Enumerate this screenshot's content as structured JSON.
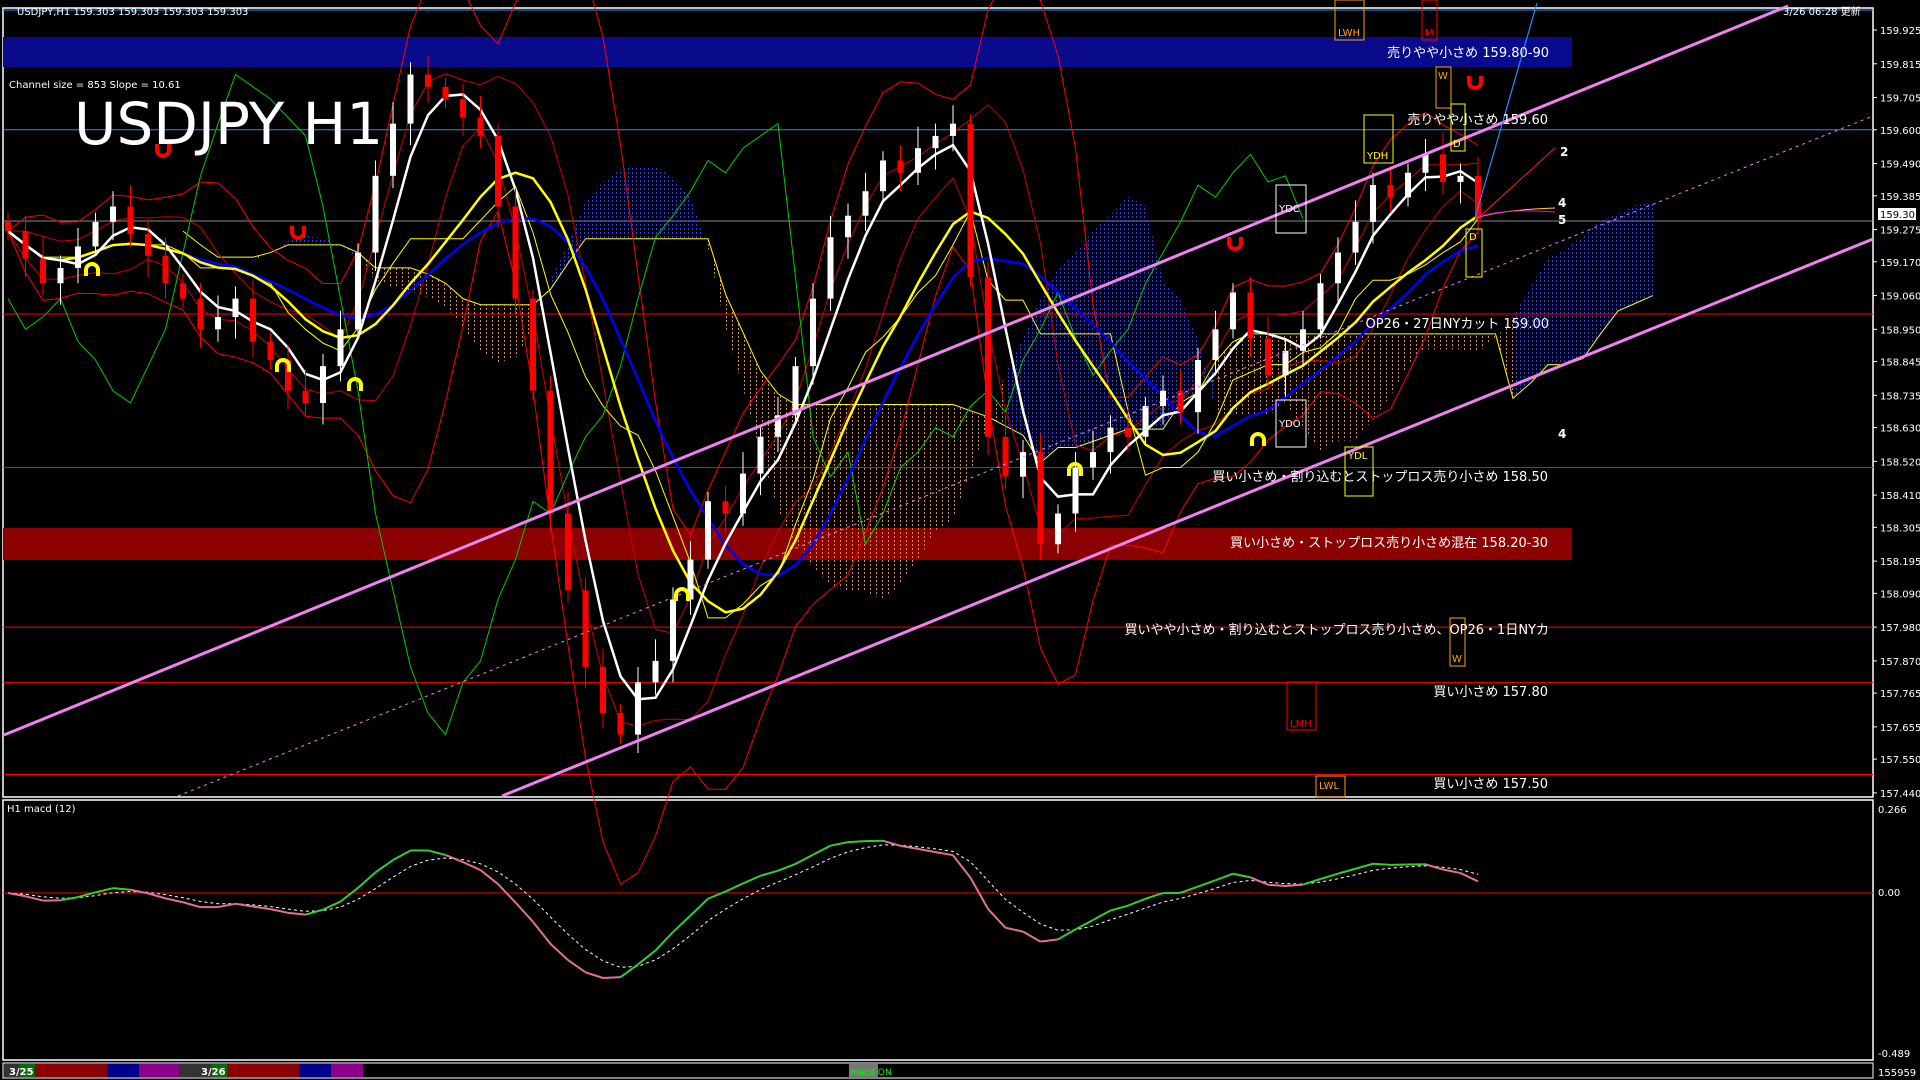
{
  "header": {
    "symbol_line": "USDJPY,H1  159.303 159.303 159.303 159.303",
    "updated": "3/26 06:28 更新"
  },
  "watermark": "USDJPY H1",
  "channel_info": "Channel size = 853 Slope = 10.61",
  "zones": [
    {
      "text": "売りやや小さめ 159.80-90",
      "color": "#0a0a8c"
    },
    {
      "text": "売りやや小さめ 159.60"
    },
    {
      "text": "OP26・27日NYカット 159.00"
    },
    {
      "text": "買い小さめ・割り込むとストップロス売り小さめ 158.50"
    },
    {
      "text": "買い小さめ・ストップロス売り小さめ混在 158.20-30",
      "color": "#8b0000"
    },
    {
      "text": "買いやや小さめ・割り込むとストップロス売り小さめ、OP26・1日NYカ"
    },
    {
      "text": "買い小さめ 157.80"
    },
    {
      "text": "買い小さめ 157.50"
    }
  ],
  "level_boxes": [
    {
      "label": "LWH",
      "color": "#ffa500"
    },
    {
      "label": "M",
      "color": "#ff0000"
    },
    {
      "label": "W",
      "color": "#ffa500"
    },
    {
      "label": "D",
      "color": "#ffff00"
    },
    {
      "label": "YDH",
      "color": "#ffff00"
    },
    {
      "label": "YDC",
      "color": "#ffffff"
    },
    {
      "label": "YDO",
      "color": "#ffffff"
    },
    {
      "label": "YDL",
      "color": "#ffff00"
    },
    {
      "label": "D",
      "color": "#ffff00"
    },
    {
      "label": "W",
      "color": "#ffa500"
    },
    {
      "label": "LMH",
      "color": "#ff0000"
    },
    {
      "label": "LWL",
      "color": "#ffa500"
    }
  ],
  "projection_labels": [
    "2",
    "4",
    "5",
    "4"
  ],
  "price_axis": {
    "ticks": [
      "159.925",
      "159.815",
      "159.705",
      "159.600",
      "159.490",
      "159.385",
      "159.275",
      "159.170",
      "159.060",
      "158.950",
      "158.845",
      "158.735",
      "158.630",
      "158.520",
      "158.410",
      "158.305",
      "158.195",
      "158.090",
      "157.980",
      "157.870",
      "157.765",
      "157.655",
      "157.550",
      "157.440"
    ],
    "current_price": "159.303"
  },
  "macd": {
    "title": "H1  macd (12)",
    "max_label": "0.266",
    "zero_label": "0.00",
    "min_label": "-0.489",
    "up_color": "#33cc33",
    "down_color": "#e0709a"
  },
  "bottom_bar": {
    "date1": "3/25",
    "date2": "3/26",
    "macd_toggle": "macd ON",
    "counter": "155959"
  },
  "chart_data": {
    "type": "candlestick",
    "symbol": "USDJPY",
    "timeframe": "H1",
    "ylim": [
      157.44,
      159.925
    ],
    "bull_color": "#ffffff",
    "bear_color": "#ff0000",
    "close": [
      159.27,
      159.18,
      159.1,
      159.15,
      159.22,
      159.3,
      159.35,
      159.26,
      159.19,
      159.1,
      159.05,
      158.95,
      158.99,
      159.05,
      158.91,
      158.85,
      158.75,
      158.71,
      158.83,
      158.95,
      159.2,
      159.45,
      159.62,
      159.78,
      159.74,
      159.7,
      159.64,
      159.58,
      159.35,
      159.05,
      158.75,
      158.35,
      158.1,
      157.85,
      157.7,
      157.63,
      157.8,
      157.87,
      158.07,
      158.2,
      158.39,
      158.35,
      158.48,
      158.6,
      158.67,
      158.83,
      159.05,
      159.25,
      159.32,
      159.4,
      159.5,
      159.46,
      159.54,
      159.58,
      159.62,
      159.12,
      158.6,
      158.47,
      158.55,
      158.25,
      158.35,
      158.5,
      158.55,
      158.63,
      158.6,
      158.7,
      158.75,
      158.68,
      158.85,
      158.95,
      159.07,
      158.92,
      158.8,
      158.88,
      158.95,
      159.1,
      159.2,
      159.3,
      159.42,
      159.38,
      159.46,
      159.52,
      159.43,
      159.45,
      159.31
    ],
    "horizontal_levels": [
      159.6,
      159.303,
      159.0,
      158.5,
      157.98,
      157.8,
      157.5
    ],
    "zone_bands": [
      [
        159.8,
        159.9
      ],
      [
        158.2,
        158.3
      ]
    ]
  }
}
